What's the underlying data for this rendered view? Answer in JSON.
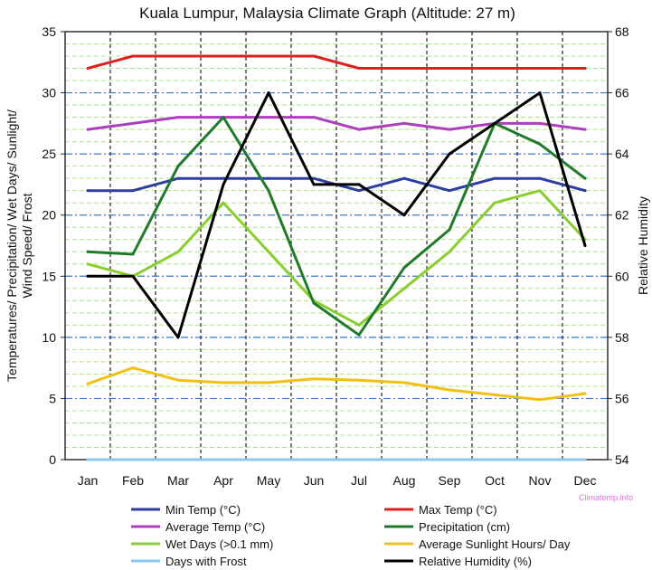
{
  "chart_data": {
    "type": "line",
    "title": "Kuala Lumpur, Malaysia Climate Graph (Altitude: 27 m)",
    "ylabel_left": "Temperatures/ Precipitation/ Wet Days/ Sunlight/ Wind Speed/ Frost",
    "ylabel_left_lines": [
      "Temperatures/ Precipitation/ Wet Days/ Sunlight/",
      "Wind Speed/ Frost"
    ],
    "ylabel_right": "Relative Humidity",
    "ylim_left": [
      0,
      35
    ],
    "ylim_right": [
      54,
      68
    ],
    "yticks_left": [
      "0",
      "5",
      "10",
      "15",
      "20",
      "25",
      "30",
      "35"
    ],
    "yticks_right": [
      "54",
      "56",
      "58",
      "60",
      "62",
      "64",
      "66",
      "68"
    ],
    "categories": [
      "Jan",
      "Feb",
      "Mar",
      "Apr",
      "May",
      "Jun",
      "Jul",
      "Aug",
      "Sep",
      "Oct",
      "Nov",
      "Dec"
    ],
    "grid": true,
    "legend_position": "bottom",
    "watermark": "Climatemp.info",
    "series": [
      {
        "name": "Min Temp (°C)",
        "color": "#2d3ea0",
        "axis": "left",
        "values": [
          22,
          22,
          23,
          23,
          23,
          23,
          22,
          23,
          22,
          23,
          23,
          22
        ]
      },
      {
        "name": "Max Temp (°C)",
        "color": "#e02020",
        "axis": "left",
        "values": [
          32,
          33,
          33,
          33,
          33,
          33,
          32,
          32,
          32,
          32,
          32,
          32
        ]
      },
      {
        "name": "Average Temp (°C)",
        "color": "#b03cc0",
        "axis": "left",
        "values": [
          27,
          27.5,
          28,
          28,
          28,
          28,
          27,
          27.5,
          27,
          27.5,
          27.5,
          27
        ]
      },
      {
        "name": "Precipitation (cm)",
        "color": "#1f7a2a",
        "axis": "left",
        "values": [
          17,
          16.8,
          24,
          28,
          22,
          12.8,
          10.2,
          15.7,
          18.8,
          27.5,
          25.8,
          23
        ]
      },
      {
        "name": "Wet Days (>0.1 mm)",
        "color": "#8acd30",
        "axis": "left",
        "values": [
          16,
          15,
          17,
          21,
          17,
          13,
          11,
          14,
          17,
          21,
          22,
          18
        ]
      },
      {
        "name": "Average Sunlight Hours/ Day",
        "color": "#f2c012",
        "axis": "left",
        "values": [
          6.2,
          7.5,
          6.5,
          6.3,
          6.3,
          6.6,
          6.5,
          6.3,
          5.7,
          5.3,
          4.9,
          5.4
        ]
      },
      {
        "name": "Days with Frost",
        "color": "#8ec8ee",
        "axis": "left",
        "values": [
          0,
          0,
          0,
          0,
          0,
          0,
          0,
          0,
          0,
          0,
          0,
          0
        ]
      },
      {
        "name": "Relative Humidity (%)",
        "color": "#000000",
        "axis": "right",
        "values": [
          60,
          60,
          58,
          63,
          66,
          63,
          63,
          62,
          64,
          65,
          66,
          61
        ]
      }
    ]
  }
}
